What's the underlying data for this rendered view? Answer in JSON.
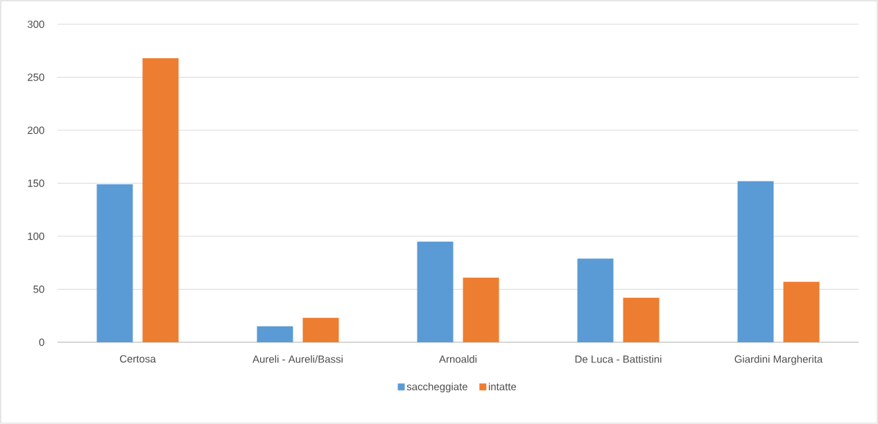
{
  "chart_data": {
    "type": "bar",
    "categories": [
      "Certosa",
      "Aureli - Aureli/Bassi",
      "Arnoaldi",
      "De Luca - Battistini",
      "Giardini Margherita"
    ],
    "series": [
      {
        "name": "saccheggiate",
        "color": "#5b9bd5",
        "values": [
          149,
          15,
          95,
          79,
          152
        ]
      },
      {
        "name": "intatte",
        "color": "#ed7d31",
        "values": [
          268,
          23,
          61,
          42,
          57
        ]
      }
    ],
    "ylim": [
      0,
      300
    ],
    "yticks": [
      0,
      50,
      100,
      150,
      200,
      250,
      300
    ],
    "grid": "y",
    "legend": "bottom"
  }
}
